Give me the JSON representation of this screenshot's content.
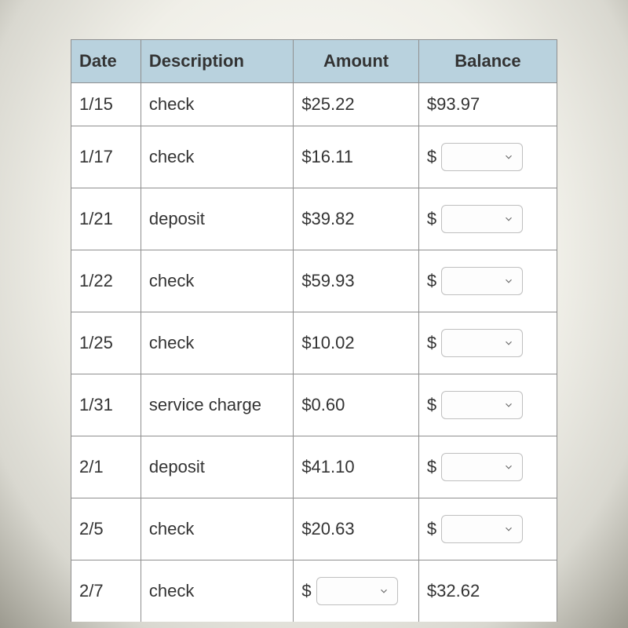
{
  "table": {
    "columns": [
      "Date",
      "Description",
      "Amount",
      "Balance"
    ],
    "header_bg": "#b9d2de",
    "border_color": "#8f8f8f",
    "text_color": "#333333",
    "font_size": 22,
    "rows": [
      {
        "date": "1/15",
        "description": "check",
        "amount": "$25.22",
        "balance_type": "text",
        "balance": "$93.97"
      },
      {
        "date": "1/17",
        "description": "check",
        "amount": "$16.11",
        "balance_type": "dropdown",
        "balance_prefix": "$"
      },
      {
        "date": "1/21",
        "description": "deposit",
        "amount": "$39.82",
        "balance_type": "dropdown",
        "balance_prefix": "$"
      },
      {
        "date": "1/22",
        "description": "check",
        "amount": "$59.93",
        "balance_type": "dropdown",
        "balance_prefix": "$"
      },
      {
        "date": "1/25",
        "description": "check",
        "amount": "$10.02",
        "balance_type": "dropdown",
        "balance_prefix": "$"
      },
      {
        "date": "1/31",
        "description": "service charge",
        "amount": "$0.60",
        "balance_type": "dropdown",
        "balance_prefix": "$"
      },
      {
        "date": "2/1",
        "description": "deposit",
        "amount": "$41.10",
        "balance_type": "dropdown",
        "balance_prefix": "$"
      },
      {
        "date": "2/5",
        "description": "check",
        "amount": "$20.63",
        "balance_type": "dropdown",
        "balance_prefix": "$"
      },
      {
        "date": "2/7",
        "description": "check",
        "amount_type": "dropdown",
        "amount_prefix": "$",
        "balance_type": "text",
        "balance": "$32.62"
      }
    ]
  }
}
